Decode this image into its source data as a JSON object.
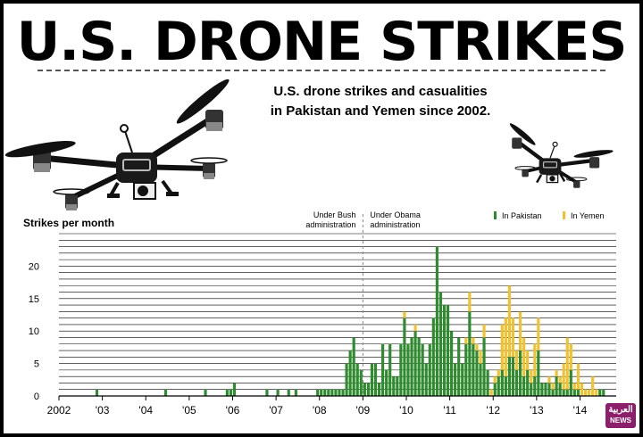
{
  "header": {
    "title": "U.S. DRONE STRIKES",
    "subtitle_line1": "U.S. drone strikes and casualities",
    "subtitle_line2": "in Pakistan and Yemen since 2002."
  },
  "logo": {
    "arabic": "العربية",
    "english": "NEWS"
  },
  "illustrations": [
    "drone-large",
    "drone-small"
  ],
  "colors": {
    "pakistan": "#2e8b2e",
    "yemen": "#f2c12e",
    "grid": "#000000"
  },
  "chart_data": {
    "type": "bar",
    "stacked": true,
    "ylabel": "Strikes per month",
    "xlabel": "",
    "ylim": [
      0,
      25
    ],
    "yticks": [
      0,
      5,
      10,
      15,
      20
    ],
    "xlim": [
      "2002-01",
      "2014-10"
    ],
    "xtick_labels": [
      {
        "label": "2002",
        "year": 2002
      },
      {
        "label": "'03",
        "year": 2003
      },
      {
        "label": "'04",
        "year": 2004
      },
      {
        "label": "'05",
        "year": 2005
      },
      {
        "label": "'06",
        "year": 2006
      },
      {
        "label": "'07",
        "year": 2007
      },
      {
        "label": "'08",
        "year": 2008
      },
      {
        "label": "'09",
        "year": 2009
      },
      {
        "label": "'10",
        "year": 2010
      },
      {
        "label": "'11",
        "year": 2011
      },
      {
        "label": "'12",
        "year": 2012
      },
      {
        "label": "'13",
        "year": 2013
      },
      {
        "label": "'14",
        "year": 2014
      }
    ],
    "legend": {
      "placement": "top-right",
      "entries": [
        "In Pakistan",
        "In Yemen"
      ]
    },
    "annotations": {
      "bush_line1": "Under Bush",
      "bush_line2": "administration",
      "obama_line1": "Under Obama",
      "obama_line2": "administration",
      "divider_month": "2009-01"
    },
    "series": [
      {
        "name": "In Pakistan",
        "points": [
          [
            "2002-11",
            1
          ],
          [
            "2004-06",
            1
          ],
          [
            "2005-05",
            1
          ],
          [
            "2005-11",
            1
          ],
          [
            "2005-12",
            1
          ],
          [
            "2006-01",
            2
          ],
          [
            "2006-10",
            1
          ],
          [
            "2007-01",
            1
          ],
          [
            "2007-04",
            1
          ],
          [
            "2007-06",
            1
          ],
          [
            "2007-12",
            1
          ],
          [
            "2008-01",
            1
          ],
          [
            "2008-02",
            1
          ],
          [
            "2008-03",
            1
          ],
          [
            "2008-04",
            1
          ],
          [
            "2008-05",
            1
          ],
          [
            "2008-06",
            1
          ],
          [
            "2008-07",
            1
          ],
          [
            "2008-08",
            5
          ],
          [
            "2008-09",
            7
          ],
          [
            "2008-10",
            9
          ],
          [
            "2008-11",
            5
          ],
          [
            "2008-12",
            4
          ],
          [
            "2009-01",
            2
          ],
          [
            "2009-02",
            2
          ],
          [
            "2009-03",
            5
          ],
          [
            "2009-04",
            5
          ],
          [
            "2009-05",
            2
          ],
          [
            "2009-06",
            8
          ],
          [
            "2009-07",
            4
          ],
          [
            "2009-08",
            8
          ],
          [
            "2009-09",
            3
          ],
          [
            "2009-10",
            3
          ],
          [
            "2009-11",
            8
          ],
          [
            "2009-12",
            12
          ],
          [
            "2010-01",
            8
          ],
          [
            "2010-02",
            9
          ],
          [
            "2010-03",
            10
          ],
          [
            "2010-04",
            9
          ],
          [
            "2010-05",
            8
          ],
          [
            "2010-06",
            5
          ],
          [
            "2010-07",
            8
          ],
          [
            "2010-08",
            12
          ],
          [
            "2010-09",
            23
          ],
          [
            "2010-10",
            16
          ],
          [
            "2010-11",
            14
          ],
          [
            "2010-12",
            14
          ],
          [
            "2011-01",
            10
          ],
          [
            "2011-02",
            5
          ],
          [
            "2011-03",
            9
          ],
          [
            "2011-04",
            5
          ],
          [
            "2011-05",
            8
          ],
          [
            "2011-06",
            13
          ],
          [
            "2011-07",
            8
          ],
          [
            "2011-08",
            7
          ],
          [
            "2011-09",
            5
          ],
          [
            "2011-10",
            9
          ],
          [
            "2011-11",
            4
          ],
          [
            "2011-12",
            0
          ],
          [
            "2012-01",
            2
          ],
          [
            "2012-02",
            3
          ],
          [
            "2012-03",
            4
          ],
          [
            "2012-04",
            3
          ],
          [
            "2012-05",
            6
          ],
          [
            "2012-06",
            6
          ],
          [
            "2012-07",
            4
          ],
          [
            "2012-08",
            7
          ],
          [
            "2012-09",
            3
          ],
          [
            "2012-10",
            4
          ],
          [
            "2012-11",
            2
          ],
          [
            "2012-12",
            3
          ],
          [
            "2013-01",
            7
          ],
          [
            "2013-02",
            2
          ],
          [
            "2013-03",
            2
          ],
          [
            "2013-04",
            2
          ],
          [
            "2013-05",
            1
          ],
          [
            "2013-06",
            3
          ],
          [
            "2013-07",
            2
          ],
          [
            "2013-08",
            1
          ],
          [
            "2013-09",
            1
          ],
          [
            "2013-10",
            4
          ],
          [
            "2013-11",
            1
          ],
          [
            "2013-12",
            1
          ],
          [
            "2014-01",
            0
          ],
          [
            "2014-02",
            0
          ],
          [
            "2014-03",
            0
          ],
          [
            "2014-04",
            0
          ],
          [
            "2014-05",
            0
          ],
          [
            "2014-06",
            1
          ],
          [
            "2014-07",
            1
          ]
        ]
      },
      {
        "name": "In Yemen",
        "points": [
          [
            "2009-12",
            1
          ],
          [
            "2010-03",
            1
          ],
          [
            "2011-05",
            1
          ],
          [
            "2011-06",
            3
          ],
          [
            "2011-07",
            1
          ],
          [
            "2011-08",
            1
          ],
          [
            "2011-09",
            2
          ],
          [
            "2011-10",
            2
          ],
          [
            "2011-12",
            1
          ],
          [
            "2012-01",
            1
          ],
          [
            "2012-02",
            1
          ],
          [
            "2012-03",
            7
          ],
          [
            "2012-04",
            9
          ],
          [
            "2012-05",
            11
          ],
          [
            "2012-06",
            6
          ],
          [
            "2012-07",
            3
          ],
          [
            "2012-08",
            6
          ],
          [
            "2012-09",
            6
          ],
          [
            "2012-10",
            3
          ],
          [
            "2012-11",
            2
          ],
          [
            "2012-12",
            5
          ],
          [
            "2013-01",
            5
          ],
          [
            "2013-02",
            0
          ],
          [
            "2013-03",
            0
          ],
          [
            "2013-04",
            1
          ],
          [
            "2013-05",
            1
          ],
          [
            "2013-06",
            1
          ],
          [
            "2013-07",
            1
          ],
          [
            "2013-08",
            4
          ],
          [
            "2013-09",
            8
          ],
          [
            "2013-10",
            4
          ],
          [
            "2013-11",
            1
          ],
          [
            "2013-12",
            4
          ],
          [
            "2014-01",
            2
          ],
          [
            "2014-02",
            1
          ],
          [
            "2014-03",
            1
          ],
          [
            "2014-04",
            3
          ],
          [
            "2014-05",
            1
          ]
        ]
      }
    ]
  }
}
